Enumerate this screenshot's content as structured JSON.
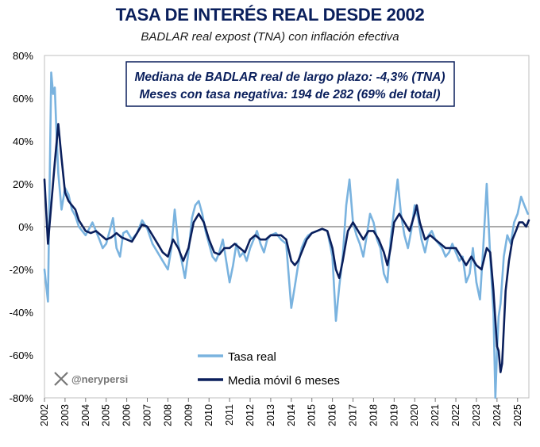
{
  "chart_data": {
    "type": "line",
    "title": "TASA DE INTERÉS REAL DESDE 2002",
    "subtitle": "BADLAR real expost (TNA) con inflación efectiva",
    "annotation": [
      "Mediana de BADLAR real de largo plazo: -4,3% (TNA)",
      "Meses con tasa negativa: 194 de 282 (69% del total)"
    ],
    "y_ticks": [
      "80%",
      "60%",
      "40%",
      "20%",
      "0%",
      "-20%",
      "-40%",
      "-60%",
      "-80%"
    ],
    "x_ticks": [
      "2002",
      "2003",
      "2004",
      "2005",
      "2006",
      "2007",
      "2008",
      "2009",
      "2010",
      "2011",
      "2012",
      "2013",
      "2014",
      "2015",
      "2016",
      "2017",
      "2018",
      "2019",
      "2020",
      "2021",
      "2022",
      "2023",
      "2024",
      "2025"
    ],
    "ylim": [
      -80,
      80
    ],
    "xlim": [
      2002.0,
      2025.55
    ],
    "watermark": "@nerypersi",
    "watermark_icon": "x-logo-icon",
    "colors": {
      "tasa_real": "#7ab3df",
      "media_movil": "#0a1f5c"
    },
    "series": [
      {
        "name": "Tasa real",
        "points": [
          [
            2002.0,
            -20
          ],
          [
            2002.17,
            -35
          ],
          [
            2002.33,
            72
          ],
          [
            2002.42,
            62
          ],
          [
            2002.5,
            65
          ],
          [
            2002.58,
            45
          ],
          [
            2002.67,
            25
          ],
          [
            2002.83,
            8
          ],
          [
            2003.0,
            18
          ],
          [
            2003.17,
            15
          ],
          [
            2003.33,
            8
          ],
          [
            2003.5,
            5
          ],
          [
            2003.67,
            0
          ],
          [
            2004.0,
            -4
          ],
          [
            2004.17,
            -1
          ],
          [
            2004.33,
            2
          ],
          [
            2004.5,
            -2
          ],
          [
            2004.67,
            -6
          ],
          [
            2004.83,
            -10
          ],
          [
            2005.0,
            -8
          ],
          [
            2005.17,
            -2
          ],
          [
            2005.33,
            4
          ],
          [
            2005.5,
            -10
          ],
          [
            2005.67,
            -14
          ],
          [
            2005.83,
            -3
          ],
          [
            2006.0,
            -2
          ],
          [
            2006.25,
            -6
          ],
          [
            2006.5,
            -3
          ],
          [
            2006.75,
            3
          ],
          [
            2007.0,
            -1
          ],
          [
            2007.25,
            -8
          ],
          [
            2007.5,
            -12
          ],
          [
            2007.75,
            -16
          ],
          [
            2008.0,
            -20
          ],
          [
            2008.17,
            -10
          ],
          [
            2008.33,
            8
          ],
          [
            2008.5,
            -8
          ],
          [
            2008.67,
            -16
          ],
          [
            2008.83,
            -24
          ],
          [
            2009.0,
            -12
          ],
          [
            2009.17,
            4
          ],
          [
            2009.33,
            10
          ],
          [
            2009.5,
            12
          ],
          [
            2009.67,
            6
          ],
          [
            2009.83,
            -2
          ],
          [
            2010.0,
            -8
          ],
          [
            2010.17,
            -14
          ],
          [
            2010.33,
            -16
          ],
          [
            2010.5,
            -12
          ],
          [
            2010.67,
            -6
          ],
          [
            2011.0,
            -26
          ],
          [
            2011.17,
            -18
          ],
          [
            2011.33,
            -8
          ],
          [
            2011.5,
            -14
          ],
          [
            2011.67,
            -12
          ],
          [
            2011.83,
            -16
          ],
          [
            2012.0,
            -10
          ],
          [
            2012.17,
            -6
          ],
          [
            2012.33,
            -2
          ],
          [
            2012.5,
            -8
          ],
          [
            2012.67,
            -12
          ],
          [
            2012.83,
            -6
          ],
          [
            2013.0,
            -4
          ],
          [
            2013.25,
            -3
          ],
          [
            2013.5,
            -6
          ],
          [
            2013.75,
            -8
          ],
          [
            2014.0,
            -38
          ],
          [
            2014.17,
            -28
          ],
          [
            2014.33,
            -18
          ],
          [
            2014.5,
            -10
          ],
          [
            2014.67,
            -6
          ],
          [
            2014.83,
            -4
          ],
          [
            2015.0,
            -3
          ],
          [
            2015.25,
            -2
          ],
          [
            2015.5,
            -1
          ],
          [
            2015.75,
            -2
          ],
          [
            2016.0,
            -14
          ],
          [
            2016.17,
            -44
          ],
          [
            2016.33,
            -28
          ],
          [
            2016.5,
            -14
          ],
          [
            2016.67,
            10
          ],
          [
            2016.83,
            22
          ],
          [
            2017.0,
            2
          ],
          [
            2017.17,
            -4
          ],
          [
            2017.33,
            -8
          ],
          [
            2017.5,
            -14
          ],
          [
            2017.67,
            -4
          ],
          [
            2017.83,
            6
          ],
          [
            2018.0,
            2
          ],
          [
            2018.17,
            -6
          ],
          [
            2018.33,
            -10
          ],
          [
            2018.5,
            -22
          ],
          [
            2018.67,
            -26
          ],
          [
            2018.83,
            -6
          ],
          [
            2019.0,
            8
          ],
          [
            2019.17,
            22
          ],
          [
            2019.33,
            6
          ],
          [
            2019.5,
            -4
          ],
          [
            2019.67,
            -10
          ],
          [
            2019.83,
            -2
          ],
          [
            2020.0,
            10
          ],
          [
            2020.17,
            4
          ],
          [
            2020.33,
            -6
          ],
          [
            2020.5,
            -12
          ],
          [
            2020.67,
            -4
          ],
          [
            2020.83,
            -2
          ],
          [
            2021.0,
            -6
          ],
          [
            2021.17,
            -8
          ],
          [
            2021.33,
            -10
          ],
          [
            2021.5,
            -14
          ],
          [
            2021.67,
            -12
          ],
          [
            2021.83,
            -8
          ],
          [
            2022.0,
            -12
          ],
          [
            2022.17,
            -16
          ],
          [
            2022.33,
            -14
          ],
          [
            2022.5,
            -26
          ],
          [
            2022.67,
            -22
          ],
          [
            2022.83,
            -10
          ],
          [
            2023.0,
            -26
          ],
          [
            2023.17,
            -34
          ],
          [
            2023.33,
            -10
          ],
          [
            2023.5,
            20
          ],
          [
            2023.67,
            -14
          ],
          [
            2023.83,
            -40
          ],
          [
            2023.92,
            -80
          ],
          [
            2024.0,
            -58
          ],
          [
            2024.08,
            -42
          ],
          [
            2024.17,
            -36
          ],
          [
            2024.33,
            -14
          ],
          [
            2024.5,
            -4
          ],
          [
            2024.67,
            -8
          ],
          [
            2024.83,
            2
          ],
          [
            2025.0,
            6
          ],
          [
            2025.17,
            14
          ],
          [
            2025.33,
            10
          ],
          [
            2025.5,
            6
          ]
        ]
      },
      {
        "name": "Media móvil 6 meses",
        "points": [
          [
            2002.0,
            22
          ],
          [
            2002.17,
            -8
          ],
          [
            2002.33,
            10
          ],
          [
            2002.5,
            30
          ],
          [
            2002.67,
            48
          ],
          [
            2002.83,
            32
          ],
          [
            2003.0,
            16
          ],
          [
            2003.17,
            12
          ],
          [
            2003.33,
            10
          ],
          [
            2003.5,
            8
          ],
          [
            2003.67,
            3
          ],
          [
            2004.0,
            -2
          ],
          [
            2004.25,
            -3
          ],
          [
            2004.5,
            -2
          ],
          [
            2004.75,
            -4
          ],
          [
            2005.0,
            -6
          ],
          [
            2005.25,
            -5
          ],
          [
            2005.5,
            -3
          ],
          [
            2005.75,
            -5
          ],
          [
            2006.0,
            -6
          ],
          [
            2006.25,
            -7
          ],
          [
            2006.5,
            -3
          ],
          [
            2006.75,
            1
          ],
          [
            2007.0,
            0
          ],
          [
            2007.25,
            -4
          ],
          [
            2007.5,
            -8
          ],
          [
            2007.75,
            -12
          ],
          [
            2008.0,
            -14
          ],
          [
            2008.25,
            -6
          ],
          [
            2008.5,
            -10
          ],
          [
            2008.75,
            -16
          ],
          [
            2009.0,
            -10
          ],
          [
            2009.25,
            2
          ],
          [
            2009.5,
            6
          ],
          [
            2009.75,
            2
          ],
          [
            2010.0,
            -6
          ],
          [
            2010.25,
            -12
          ],
          [
            2010.5,
            -13
          ],
          [
            2010.75,
            -10
          ],
          [
            2011.0,
            -10
          ],
          [
            2011.25,
            -8
          ],
          [
            2011.5,
            -10
          ],
          [
            2011.75,
            -12
          ],
          [
            2012.0,
            -6
          ],
          [
            2012.25,
            -4
          ],
          [
            2012.5,
            -6
          ],
          [
            2012.75,
            -6
          ],
          [
            2013.0,
            -4
          ],
          [
            2013.25,
            -4
          ],
          [
            2013.5,
            -4
          ],
          [
            2013.75,
            -6
          ],
          [
            2014.0,
            -16
          ],
          [
            2014.17,
            -18
          ],
          [
            2014.33,
            -16
          ],
          [
            2014.5,
            -12
          ],
          [
            2014.75,
            -6
          ],
          [
            2015.0,
            -3
          ],
          [
            2015.25,
            -2
          ],
          [
            2015.5,
            -1
          ],
          [
            2015.75,
            -2
          ],
          [
            2016.0,
            -10
          ],
          [
            2016.17,
            -20
          ],
          [
            2016.33,
            -24
          ],
          [
            2016.5,
            -16
          ],
          [
            2016.75,
            -2
          ],
          [
            2017.0,
            2
          ],
          [
            2017.25,
            -2
          ],
          [
            2017.5,
            -6
          ],
          [
            2017.75,
            -2
          ],
          [
            2018.0,
            -2
          ],
          [
            2018.25,
            -6
          ],
          [
            2018.5,
            -12
          ],
          [
            2018.67,
            -18
          ],
          [
            2018.83,
            -10
          ],
          [
            2019.0,
            2
          ],
          [
            2019.25,
            6
          ],
          [
            2019.5,
            2
          ],
          [
            2019.75,
            -2
          ],
          [
            2020.0,
            6
          ],
          [
            2020.1,
            10
          ],
          [
            2020.25,
            2
          ],
          [
            2020.5,
            -6
          ],
          [
            2020.75,
            -4
          ],
          [
            2021.0,
            -6
          ],
          [
            2021.25,
            -8
          ],
          [
            2021.5,
            -10
          ],
          [
            2021.75,
            -10
          ],
          [
            2022.0,
            -10
          ],
          [
            2022.25,
            -14
          ],
          [
            2022.5,
            -18
          ],
          [
            2022.75,
            -14
          ],
          [
            2023.0,
            -18
          ],
          [
            2023.25,
            -20
          ],
          [
            2023.5,
            -10
          ],
          [
            2023.67,
            -12
          ],
          [
            2023.83,
            -30
          ],
          [
            2024.0,
            -56
          ],
          [
            2024.08,
            -58
          ],
          [
            2024.17,
            -68
          ],
          [
            2024.25,
            -64
          ],
          [
            2024.42,
            -30
          ],
          [
            2024.58,
            -16
          ],
          [
            2024.75,
            -6
          ],
          [
            2024.92,
            -2
          ],
          [
            2025.08,
            2
          ],
          [
            2025.25,
            2
          ],
          [
            2025.42,
            0
          ],
          [
            2025.55,
            3
          ]
        ]
      }
    ]
  }
}
